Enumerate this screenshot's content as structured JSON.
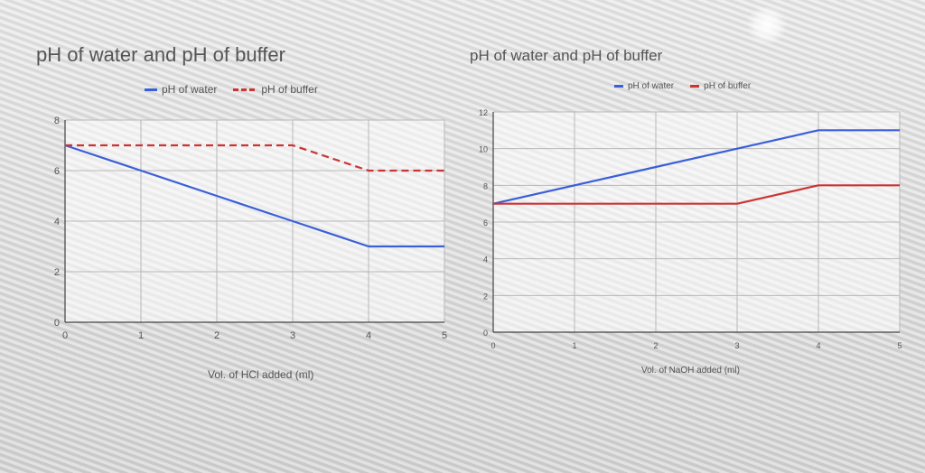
{
  "chart_data": [
    {
      "type": "line",
      "title": "pH of water and pH of buffer",
      "xlabel": "Vol. of HCl added (ml)",
      "ylabel": "",
      "x": [
        0,
        1,
        2,
        3,
        4,
        5
      ],
      "xlim": [
        0,
        5
      ],
      "ylim": [
        0,
        8
      ],
      "xticks": [
        "0",
        "1",
        "2",
        "3",
        "4",
        "5"
      ],
      "yticks": [
        "0",
        "2",
        "4",
        "6",
        "8"
      ],
      "grid": true,
      "legend_position": "top",
      "series": [
        {
          "name": "pH of water",
          "color": "#3b5fd9",
          "dashed": false,
          "values": [
            7,
            6,
            5,
            4,
            3,
            3
          ]
        },
        {
          "name": "pH of buffer",
          "color": "#cc3333",
          "dashed": true,
          "values": [
            7,
            7,
            7,
            7,
            6,
            6
          ]
        }
      ]
    },
    {
      "type": "line",
      "title": "pH of water and pH of buffer",
      "xlabel": "Vol. of NaOH added (ml)",
      "ylabel": "",
      "x": [
        0,
        1,
        2,
        3,
        4,
        5
      ],
      "xlim": [
        0,
        5
      ],
      "ylim": [
        0,
        12
      ],
      "xticks": [
        "0",
        "1",
        "2",
        "3",
        "4",
        "5"
      ],
      "yticks": [
        "0",
        "2",
        "4",
        "6",
        "8",
        "10",
        "12"
      ],
      "grid": true,
      "legend_position": "top",
      "series": [
        {
          "name": "pH of water",
          "color": "#3b5fd9",
          "dashed": false,
          "values": [
            7,
            8,
            9,
            10,
            11,
            11
          ]
        },
        {
          "name": "pH of buffer",
          "color": "#cc3333",
          "dashed": false,
          "values": [
            7,
            7,
            7,
            7,
            8,
            8
          ]
        }
      ]
    }
  ]
}
